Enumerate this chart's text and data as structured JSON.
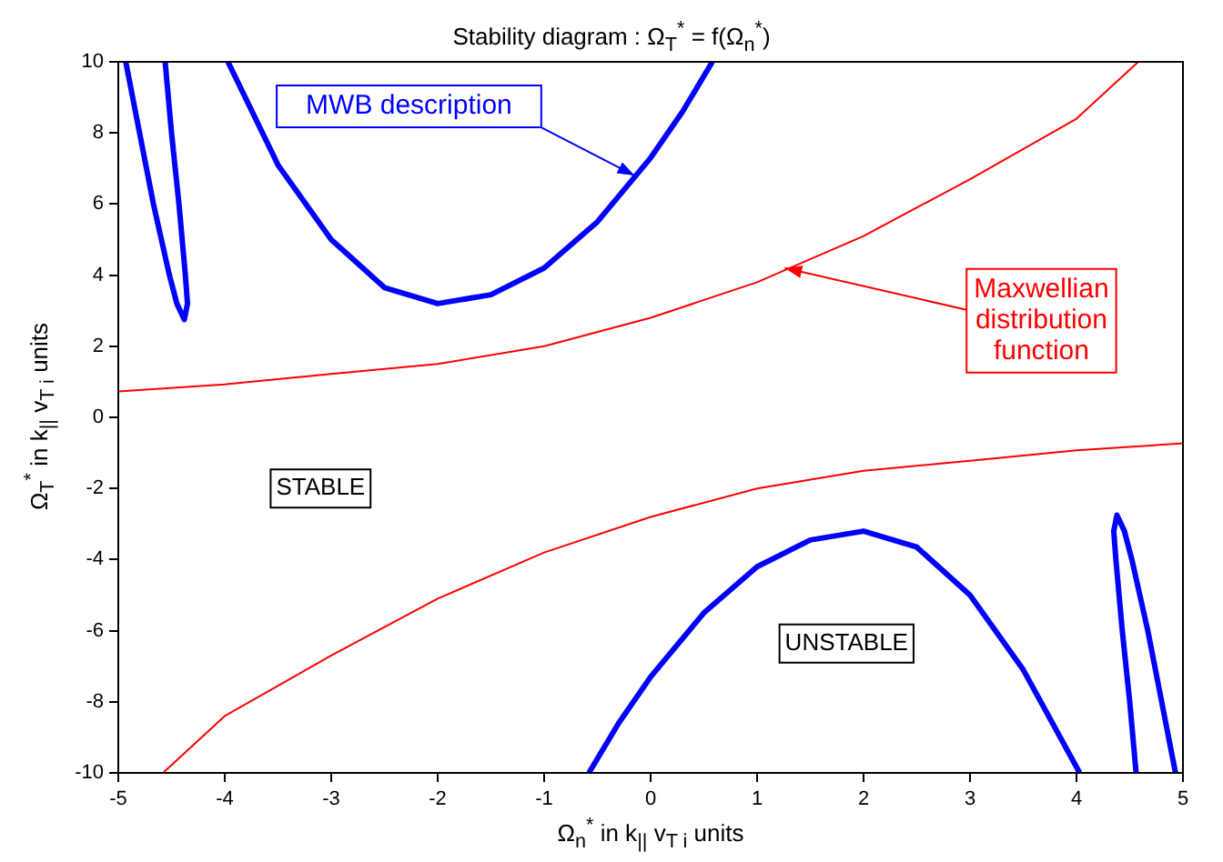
{
  "chart_data": {
    "type": "line",
    "title": "Stability diagram : Ω$_{T}$$^{*}$ = f(Ω$_{n}$$^{*}$)",
    "xlabel": "Ω$_{n}$$^{*}$ in k$_{||}$ v$_{T i}$ units",
    "ylabel": "Ω$_{T}$$^{*}$ in k$_{||}$ v$_{T i}$ units",
    "xlim": [
      -5,
      5
    ],
    "xticks": [
      -5,
      -4,
      -3,
      -2,
      -1,
      0,
      1,
      2,
      3,
      4,
      5
    ],
    "ylim": [
      -10,
      10
    ],
    "yticks": [
      -10,
      -8,
      -6,
      -4,
      -2,
      0,
      2,
      4,
      6,
      8,
      10
    ],
    "legend": false,
    "marker": "none",
    "line_style": "solid",
    "series": [
      {
        "color": "#0000ff",
        "x": [
          -3.97,
          -3.5,
          -3,
          -2.5,
          -2,
          -1.5,
          -1,
          -0.5,
          0,
          0.3,
          0.58
        ],
        "values": [
          10,
          7.1,
          5.0,
          3.65,
          3.2,
          3.45,
          4.2,
          5.5,
          7.3,
          8.6,
          10
        ]
      },
      {
        "color": "#0000ff",
        "x": [
          -0.58,
          -0.3,
          0,
          0.5,
          1,
          1.5,
          2,
          2.5,
          3,
          3.5,
          4.03
        ],
        "values": [
          -10,
          -8.6,
          -7.3,
          -5.5,
          -4.2,
          -3.45,
          -3.2,
          -3.65,
          -5.0,
          -7.1,
          -10
        ]
      },
      {
        "color": "#0000ff",
        "x": [
          -4.93,
          -4.8,
          -4.67,
          -4.52,
          -4.45,
          -4.38,
          -4.35,
          -4.37,
          -4.43,
          -4.5,
          -4.56
        ],
        "values": [
          10,
          8,
          6,
          4,
          3.2,
          2.75,
          3.2,
          4,
          6,
          8,
          10
        ]
      },
      {
        "color": "#0000ff",
        "x": [
          4.93,
          4.8,
          4.67,
          4.52,
          4.45,
          4.38,
          4.35,
          4.37,
          4.43,
          4.5,
          4.56
        ],
        "values": [
          -10,
          -8,
          -6,
          -4,
          -3.2,
          -2.75,
          -3.2,
          -4,
          -6,
          -8,
          -10
        ]
      },
      {
        "color": "#ff0000",
        "x": [
          -5,
          -4,
          -3,
          -2,
          -1,
          0,
          1,
          2,
          3,
          4,
          4.58
        ],
        "values": [
          0.73,
          0.93,
          1.22,
          1.5,
          2.0,
          2.8,
          3.8,
          5.1,
          6.7,
          8.4,
          10
        ]
      },
      {
        "color": "#ff0000",
        "x": [
          -4.58,
          -4,
          -3,
          -2,
          -1,
          0,
          1,
          2,
          3,
          4,
          5
        ],
        "values": [
          -10,
          -8.4,
          -6.7,
          -5.1,
          -3.8,
          -2.8,
          -2.0,
          -1.5,
          -1.22,
          -0.93,
          -0.73
        ]
      }
    ],
    "annotations": [
      {
        "text": "MWB description",
        "x": -0.15,
        "y": 6.8
      },
      {
        "text": "Maxwellian\ndistribution\nfunction",
        "x": 1.26,
        "y": 4.2
      },
      "STABLE",
      "UNSTABLE"
    ]
  }
}
